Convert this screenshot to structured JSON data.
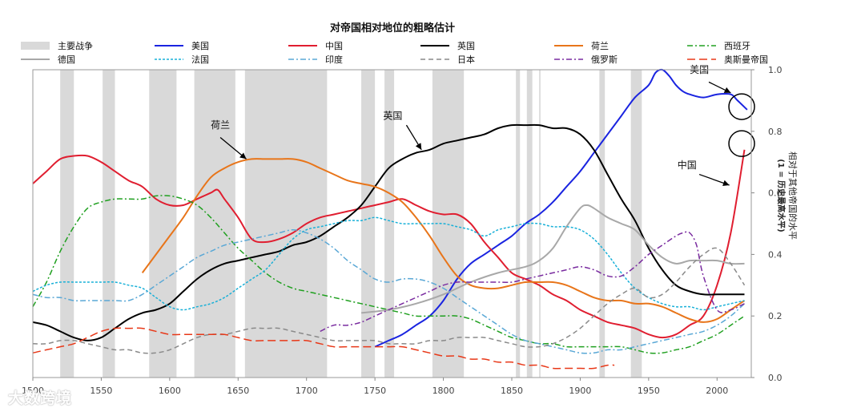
{
  "chart_data": {
    "type": "line",
    "title": "对帝国相对地位的粗略估计",
    "xlabel": "",
    "ylabel": "相对于其他帝国的水平",
    "ylabel2": "(1 = 历史最高水平)",
    "xlim": [
      1500,
      2025
    ],
    "ylim": [
      0,
      1.0
    ],
    "xticks": [
      1500,
      1550,
      1600,
      1650,
      1700,
      1750,
      1800,
      1850,
      1900,
      1950,
      2000
    ],
    "yticks": [
      0.0,
      0.2,
      0.4,
      0.6,
      0.8,
      1.0
    ],
    "yticklabels": [
      "0.0",
      "0.2",
      "0.4",
      "0.6",
      "0.8",
      "1.0"
    ],
    "wars_label": "主要战争",
    "wars": [
      [
        1520,
        1530
      ],
      [
        1551,
        1560
      ],
      [
        1585,
        1605
      ],
      [
        1618,
        1648
      ],
      [
        1655,
        1715
      ],
      [
        1740,
        1750
      ],
      [
        1757,
        1764
      ],
      [
        1792,
        1815
      ],
      [
        1853,
        1856
      ],
      [
        1861,
        1865
      ],
      [
        1870,
        1871
      ],
      [
        1914,
        1918
      ],
      [
        1937,
        1945
      ]
    ],
    "series": [
      {
        "name": "美国",
        "color": "#1a24e0",
        "dash": "solid",
        "x": [
          1750,
          1760,
          1770,
          1780,
          1790,
          1800,
          1810,
          1820,
          1830,
          1840,
          1850,
          1860,
          1870,
          1880,
          1890,
          1900,
          1910,
          1920,
          1930,
          1940,
          1950,
          1955,
          1960,
          1965,
          1970,
          1975,
          1980,
          1990,
          2000,
          2010,
          2015,
          2022
        ],
        "y": [
          0.1,
          0.12,
          0.14,
          0.17,
          0.2,
          0.25,
          0.32,
          0.37,
          0.4,
          0.43,
          0.46,
          0.5,
          0.53,
          0.57,
          0.62,
          0.67,
          0.73,
          0.79,
          0.85,
          0.91,
          0.95,
          0.99,
          1.0,
          0.98,
          0.95,
          0.93,
          0.92,
          0.91,
          0.92,
          0.92,
          0.9,
          0.87
        ]
      },
      {
        "name": "中国",
        "color": "#e01e30",
        "dash": "solid",
        "x": [
          1500,
          1510,
          1520,
          1530,
          1540,
          1550,
          1560,
          1570,
          1580,
          1590,
          1600,
          1610,
          1620,
          1630,
          1635,
          1640,
          1650,
          1660,
          1670,
          1680,
          1690,
          1700,
          1710,
          1720,
          1730,
          1740,
          1750,
          1760,
          1770,
          1780,
          1790,
          1800,
          1810,
          1820,
          1830,
          1840,
          1850,
          1860,
          1870,
          1880,
          1890,
          1900,
          1910,
          1920,
          1930,
          1940,
          1950,
          1960,
          1970,
          1980,
          1990,
          2000,
          2010,
          2020
        ],
        "y": [
          0.63,
          0.67,
          0.71,
          0.72,
          0.72,
          0.7,
          0.67,
          0.64,
          0.62,
          0.58,
          0.56,
          0.56,
          0.58,
          0.6,
          0.61,
          0.58,
          0.52,
          0.45,
          0.44,
          0.45,
          0.47,
          0.5,
          0.52,
          0.53,
          0.54,
          0.55,
          0.56,
          0.57,
          0.58,
          0.56,
          0.54,
          0.53,
          0.53,
          0.5,
          0.44,
          0.39,
          0.34,
          0.32,
          0.3,
          0.27,
          0.25,
          0.22,
          0.2,
          0.18,
          0.17,
          0.16,
          0.14,
          0.13,
          0.14,
          0.17,
          0.2,
          0.3,
          0.47,
          0.74
        ]
      },
      {
        "name": "英国",
        "color": "#000000",
        "dash": "solid",
        "x": [
          1500,
          1510,
          1520,
          1530,
          1540,
          1550,
          1560,
          1570,
          1580,
          1590,
          1600,
          1610,
          1620,
          1630,
          1640,
          1650,
          1660,
          1670,
          1680,
          1690,
          1700,
          1710,
          1720,
          1730,
          1740,
          1750,
          1760,
          1770,
          1780,
          1790,
          1800,
          1810,
          1820,
          1830,
          1840,
          1850,
          1860,
          1870,
          1880,
          1890,
          1900,
          1910,
          1920,
          1930,
          1940,
          1950,
          1960,
          1970,
          1980,
          1990,
          2000,
          2010,
          2020
        ],
        "y": [
          0.18,
          0.17,
          0.15,
          0.13,
          0.12,
          0.13,
          0.16,
          0.19,
          0.21,
          0.22,
          0.24,
          0.28,
          0.32,
          0.35,
          0.37,
          0.38,
          0.39,
          0.4,
          0.41,
          0.43,
          0.44,
          0.46,
          0.49,
          0.52,
          0.56,
          0.62,
          0.68,
          0.71,
          0.73,
          0.74,
          0.76,
          0.77,
          0.78,
          0.79,
          0.81,
          0.82,
          0.82,
          0.82,
          0.81,
          0.81,
          0.79,
          0.74,
          0.66,
          0.58,
          0.51,
          0.42,
          0.35,
          0.3,
          0.28,
          0.27,
          0.27,
          0.27,
          0.27
        ]
      },
      {
        "name": "荷兰",
        "color": "#e8751a",
        "dash": "solid",
        "x": [
          1580,
          1590,
          1600,
          1610,
          1620,
          1630,
          1640,
          1650,
          1660,
          1670,
          1680,
          1690,
          1700,
          1710,
          1720,
          1730,
          1740,
          1750,
          1760,
          1770,
          1780,
          1790,
          1800,
          1810,
          1820,
          1830,
          1840,
          1850,
          1860,
          1870,
          1880,
          1890,
          1900,
          1910,
          1920,
          1930,
          1940,
          1950,
          1960,
          1970,
          1980,
          1990,
          2000,
          2010,
          2020
        ],
        "y": [
          0.34,
          0.4,
          0.46,
          0.52,
          0.59,
          0.65,
          0.68,
          0.7,
          0.71,
          0.71,
          0.71,
          0.71,
          0.7,
          0.68,
          0.66,
          0.64,
          0.63,
          0.62,
          0.6,
          0.57,
          0.52,
          0.46,
          0.39,
          0.33,
          0.3,
          0.29,
          0.29,
          0.3,
          0.31,
          0.31,
          0.31,
          0.3,
          0.28,
          0.26,
          0.25,
          0.25,
          0.24,
          0.24,
          0.23,
          0.21,
          0.19,
          0.18,
          0.19,
          0.22,
          0.25
        ]
      },
      {
        "name": "西班牙",
        "color": "#20a020",
        "dash": "dashdot",
        "x": [
          1500,
          1510,
          1520,
          1530,
          1540,
          1550,
          1560,
          1570,
          1580,
          1590,
          1600,
          1610,
          1620,
          1630,
          1640,
          1650,
          1660,
          1670,
          1680,
          1690,
          1700,
          1710,
          1720,
          1730,
          1740,
          1750,
          1760,
          1770,
          1780,
          1790,
          1800,
          1810,
          1820,
          1830,
          1840,
          1850,
          1860,
          1870,
          1880,
          1890,
          1900,
          1910,
          1920,
          1930,
          1940,
          1950,
          1960,
          1970,
          1980,
          1990,
          2000,
          2010,
          2020
        ],
        "y": [
          0.23,
          0.31,
          0.41,
          0.49,
          0.55,
          0.57,
          0.58,
          0.58,
          0.58,
          0.59,
          0.59,
          0.58,
          0.56,
          0.52,
          0.47,
          0.42,
          0.38,
          0.34,
          0.31,
          0.29,
          0.28,
          0.27,
          0.26,
          0.25,
          0.24,
          0.23,
          0.22,
          0.21,
          0.2,
          0.2,
          0.2,
          0.2,
          0.19,
          0.17,
          0.15,
          0.13,
          0.12,
          0.11,
          0.11,
          0.1,
          0.1,
          0.1,
          0.1,
          0.1,
          0.09,
          0.08,
          0.08,
          0.09,
          0.1,
          0.12,
          0.14,
          0.17,
          0.2
        ]
      },
      {
        "name": "德国",
        "color": "#a8a8a8",
        "dash": "solid",
        "x": [
          1740,
          1760,
          1780,
          1800,
          1820,
          1840,
          1860,
          1870,
          1880,
          1890,
          1900,
          1905,
          1910,
          1920,
          1930,
          1940,
          1950,
          1960,
          1970,
          1980,
          1990,
          2000,
          2010,
          2020
        ],
        "y": [
          0.21,
          0.22,
          0.24,
          0.27,
          0.31,
          0.34,
          0.36,
          0.38,
          0.42,
          0.49,
          0.55,
          0.56,
          0.55,
          0.52,
          0.5,
          0.48,
          0.43,
          0.39,
          0.37,
          0.38,
          0.38,
          0.38,
          0.37,
          0.37
        ]
      },
      {
        "name": "法国",
        "color": "#18b0d8",
        "dash": "dotted",
        "x": [
          1500,
          1510,
          1520,
          1530,
          1540,
          1550,
          1560,
          1570,
          1580,
          1590,
          1600,
          1610,
          1620,
          1630,
          1640,
          1650,
          1660,
          1670,
          1680,
          1690,
          1700,
          1710,
          1720,
          1730,
          1740,
          1750,
          1760,
          1770,
          1780,
          1790,
          1800,
          1810,
          1820,
          1830,
          1840,
          1850,
          1860,
          1870,
          1880,
          1890,
          1900,
          1910,
          1920,
          1930,
          1940,
          1950,
          1960,
          1970,
          1980,
          1990,
          2000,
          2010,
          2020
        ],
        "y": [
          0.28,
          0.3,
          0.31,
          0.31,
          0.31,
          0.31,
          0.31,
          0.3,
          0.29,
          0.26,
          0.23,
          0.22,
          0.23,
          0.24,
          0.26,
          0.29,
          0.32,
          0.35,
          0.4,
          0.45,
          0.48,
          0.49,
          0.5,
          0.51,
          0.51,
          0.52,
          0.51,
          0.5,
          0.5,
          0.5,
          0.5,
          0.49,
          0.48,
          0.46,
          0.48,
          0.49,
          0.5,
          0.5,
          0.49,
          0.49,
          0.48,
          0.45,
          0.4,
          0.34,
          0.29,
          0.26,
          0.24,
          0.23,
          0.23,
          0.22,
          0.23,
          0.24,
          0.25
        ]
      },
      {
        "name": "印度",
        "color": "#5aa8d6",
        "dash": "dashdot",
        "x": [
          1500,
          1510,
          1520,
          1530,
          1540,
          1550,
          1560,
          1570,
          1580,
          1590,
          1600,
          1610,
          1620,
          1630,
          1640,
          1650,
          1660,
          1670,
          1680,
          1690,
          1700,
          1710,
          1720,
          1730,
          1740,
          1750,
          1760,
          1770,
          1780,
          1790,
          1800,
          1810,
          1820,
          1830,
          1840,
          1850,
          1860,
          1870,
          1880,
          1890,
          1900,
          1910,
          1920,
          1930,
          1940,
          1950,
          1960,
          1970,
          1980,
          1990,
          2000,
          2010,
          2020
        ],
        "y": [
          0.27,
          0.26,
          0.26,
          0.25,
          0.25,
          0.25,
          0.25,
          0.25,
          0.27,
          0.3,
          0.33,
          0.36,
          0.39,
          0.41,
          0.43,
          0.44,
          0.45,
          0.46,
          0.47,
          0.48,
          0.47,
          0.45,
          0.42,
          0.38,
          0.35,
          0.32,
          0.31,
          0.32,
          0.32,
          0.31,
          0.29,
          0.26,
          0.23,
          0.2,
          0.17,
          0.14,
          0.12,
          0.11,
          0.1,
          0.09,
          0.08,
          0.08,
          0.09,
          0.09,
          0.1,
          0.11,
          0.12,
          0.13,
          0.14,
          0.15,
          0.17,
          0.2,
          0.24
        ]
      },
      {
        "name": "日本",
        "color": "#8a8a8a",
        "dash": "dashed",
        "x": [
          1500,
          1510,
          1520,
          1530,
          1540,
          1550,
          1560,
          1570,
          1580,
          1590,
          1600,
          1610,
          1620,
          1630,
          1640,
          1650,
          1660,
          1670,
          1680,
          1690,
          1700,
          1710,
          1720,
          1730,
          1740,
          1750,
          1760,
          1770,
          1780,
          1790,
          1800,
          1810,
          1820,
          1830,
          1840,
          1850,
          1860,
          1870,
          1880,
          1890,
          1900,
          1910,
          1920,
          1930,
          1940,
          1950,
          1960,
          1970,
          1980,
          1990,
          2000,
          2010,
          2020
        ],
        "y": [
          0.11,
          0.11,
          0.12,
          0.12,
          0.11,
          0.1,
          0.09,
          0.09,
          0.08,
          0.08,
          0.09,
          0.11,
          0.13,
          0.14,
          0.14,
          0.15,
          0.16,
          0.16,
          0.16,
          0.15,
          0.14,
          0.13,
          0.12,
          0.12,
          0.12,
          0.12,
          0.11,
          0.11,
          0.11,
          0.12,
          0.12,
          0.13,
          0.13,
          0.13,
          0.12,
          0.11,
          0.1,
          0.1,
          0.11,
          0.13,
          0.16,
          0.2,
          0.24,
          0.27,
          0.29,
          0.26,
          0.27,
          0.31,
          0.36,
          0.4,
          0.42,
          0.37,
          0.3
        ]
      },
      {
        "name": "俄罗斯",
        "color": "#7a2ca0",
        "dash": "dashdot",
        "x": [
          1710,
          1720,
          1730,
          1740,
          1750,
          1760,
          1770,
          1780,
          1790,
          1800,
          1810,
          1820,
          1830,
          1840,
          1850,
          1860,
          1870,
          1880,
          1890,
          1900,
          1910,
          1920,
          1930,
          1940,
          1950,
          1960,
          1970,
          1975,
          1980,
          1985,
          1990,
          2000,
          2010,
          2020
        ],
        "y": [
          0.15,
          0.17,
          0.17,
          0.18,
          0.2,
          0.22,
          0.24,
          0.26,
          0.28,
          0.3,
          0.31,
          0.31,
          0.31,
          0.31,
          0.31,
          0.32,
          0.33,
          0.34,
          0.35,
          0.36,
          0.35,
          0.33,
          0.33,
          0.36,
          0.4,
          0.43,
          0.46,
          0.47,
          0.47,
          0.43,
          0.33,
          0.22,
          0.22,
          0.24
        ]
      },
      {
        "name": "奥斯曼帝国",
        "color": "#e83818",
        "dash": "longdash",
        "x": [
          1500,
          1510,
          1520,
          1530,
          1540,
          1550,
          1560,
          1570,
          1580,
          1590,
          1600,
          1610,
          1620,
          1630,
          1640,
          1650,
          1660,
          1670,
          1680,
          1690,
          1700,
          1710,
          1720,
          1730,
          1740,
          1750,
          1760,
          1770,
          1780,
          1790,
          1800,
          1810,
          1820,
          1830,
          1840,
          1850,
          1860,
          1870,
          1880,
          1890,
          1900,
          1910,
          1920,
          1925
        ],
        "y": [
          0.08,
          0.09,
          0.1,
          0.11,
          0.13,
          0.15,
          0.16,
          0.16,
          0.16,
          0.15,
          0.14,
          0.14,
          0.14,
          0.14,
          0.14,
          0.13,
          0.12,
          0.12,
          0.12,
          0.12,
          0.12,
          0.11,
          0.1,
          0.1,
          0.1,
          0.1,
          0.1,
          0.1,
          0.09,
          0.08,
          0.07,
          0.07,
          0.06,
          0.06,
          0.05,
          0.05,
          0.04,
          0.04,
          0.03,
          0.03,
          0.03,
          0.03,
          0.04,
          0.04
        ]
      }
    ],
    "annotations": [
      {
        "text": "荷兰",
        "x": 1637,
        "y": 0.81
      },
      {
        "text": "英国",
        "x": 1763,
        "y": 0.84
      },
      {
        "text": "美国",
        "x": 1987,
        "y": 0.99
      },
      {
        "text": "中国",
        "x": 1978,
        "y": 0.68
      }
    ],
    "circles": [
      {
        "x": 2018,
        "y": 0.88
      },
      {
        "x": 2018,
        "y": 0.76
      }
    ],
    "legend_placement": "top"
  },
  "watermark": "大数跨境"
}
